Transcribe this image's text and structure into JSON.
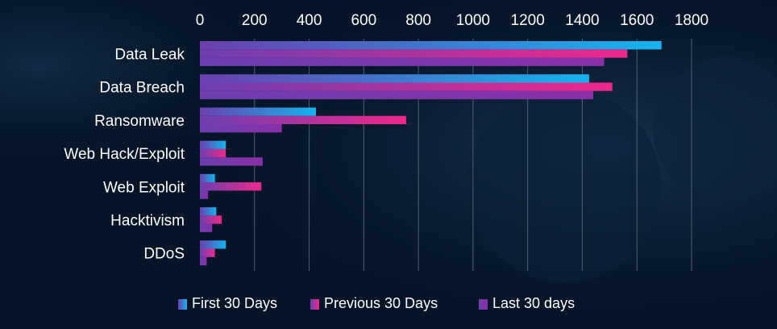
{
  "chart_data": {
    "type": "bar",
    "orientation": "horizontal",
    "categories": [
      "Data Leak",
      "Data Breach",
      "Ransomware",
      "Web Hack/Exploit",
      "Web Exploit",
      "Hacktivism",
      "DDoS"
    ],
    "series": [
      {
        "name": "First 30 Days",
        "values": [
          1690,
          1425,
          425,
          95,
          55,
          60,
          95
        ],
        "color": "#13b4f0"
      },
      {
        "name": "Previous 30 Days",
        "values": [
          1565,
          1510,
          755,
          95,
          225,
          80,
          55
        ],
        "color": "#f0288c"
      },
      {
        "name": "Last 30 days",
        "values": [
          1480,
          1440,
          300,
          230,
          30,
          45,
          25
        ],
        "color": "#8a2fa8"
      }
    ],
    "xticks": [
      0,
      200,
      400,
      600,
      800,
      1000,
      1200,
      1400,
      1600,
      1800
    ],
    "xlim": [
      0,
      1800
    ],
    "axis_position": "top",
    "grid": true,
    "legend_position": "bottom"
  }
}
